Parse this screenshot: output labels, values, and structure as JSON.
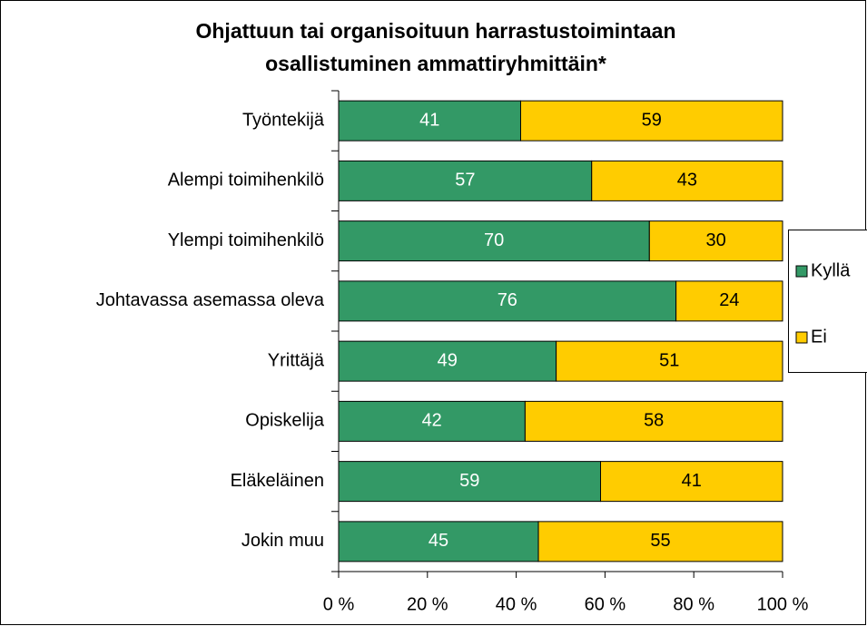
{
  "chart_data": {
    "type": "stacked-barh",
    "title": [
      "Ohjattuun tai organisoituun harrastustoimintaan",
      "osallistuminen ammattiryhmittäin*"
    ],
    "categories": [
      "Työntekijä",
      "Alempi toimihenkilö",
      "Ylempi toimihenkilö",
      "Johtavassa asemassa oleva",
      "Yrittäjä",
      "Opiskelija",
      "Eläkeläinen",
      "Jokin muu"
    ],
    "series": [
      {
        "name": "Kyllä",
        "color": "#339966",
        "values": [
          41,
          57,
          70,
          76,
          49,
          42,
          59,
          45
        ]
      },
      {
        "name": "Ei",
        "color": "#ffcc00",
        "values": [
          59,
          43,
          30,
          24,
          51,
          58,
          41,
          55
        ]
      }
    ],
    "xlim": [
      0,
      100
    ],
    "xticks": [
      {
        "value": 0,
        "label": "0 %"
      },
      {
        "value": 20,
        "label": "20 %"
      },
      {
        "value": 40,
        "label": "40 %"
      },
      {
        "value": 60,
        "label": "60 %"
      },
      {
        "value": 80,
        "label": "80 %"
      },
      {
        "value": 100,
        "label": "100 %"
      }
    ],
    "grid": false,
    "legend": "right"
  }
}
